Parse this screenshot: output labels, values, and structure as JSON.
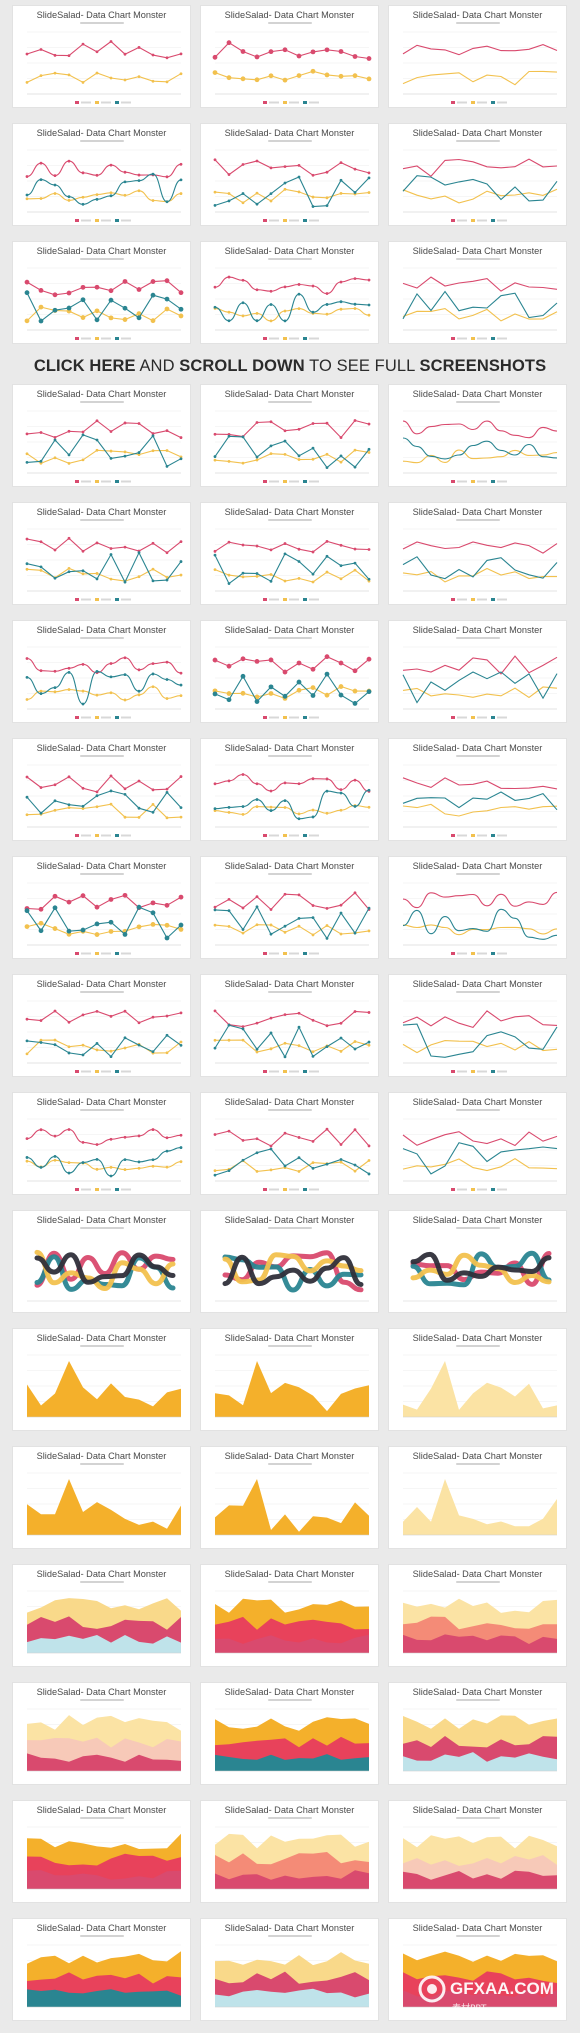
{
  "card_title": "SlideSalad- Data Chart Monster",
  "banner": {
    "part1": "CLICK HERE",
    "part2": " AND ",
    "part3": "SCROLL DOWN",
    "part4": " TO SEE FULL ",
    "part5": "SCREENSHOTS"
  },
  "watermark": {
    "text": "GFXAA.COM",
    "sub": "素材PPT"
  },
  "colors": {
    "pink": "#d94a6e",
    "teal": "#2a8591",
    "gold": "#f2c14e",
    "orange": "#f4b02b",
    "red": "#e8425b",
    "salmon": "#f48b77",
    "cream": "#fbe3a4",
    "lightblue": "#bfe3ea"
  },
  "sections": [
    {
      "count": 9,
      "style": "line"
    },
    {
      "count": 21,
      "style": "line-mixed"
    },
    {
      "count": 3,
      "style": "ribbon"
    },
    {
      "count": 6,
      "style": "area-single"
    },
    {
      "count": 12,
      "style": "area-stack"
    },
    {
      "count": 3,
      "style": "area-3d"
    }
  ]
}
